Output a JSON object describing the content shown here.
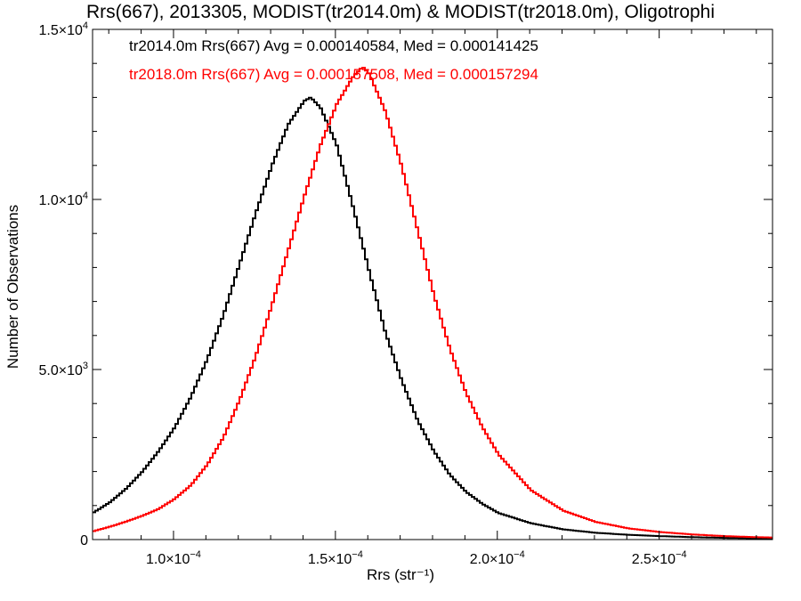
{
  "chart_data": {
    "type": "line",
    "title": "Rrs(667), 2013305, MODIST(tr2014.0m) & MODIST(tr2018.0m), Oligotrophi",
    "xlabel": "Rrs (str⁻¹)",
    "ylabel": "Number of Observations",
    "xlim": [
      7.5e-05,
      0.000285
    ],
    "ylim": [
      0,
      15000
    ],
    "x_ticks": [
      {
        "value": 0.0001,
        "mant": "1.0×10",
        "exp": "−4"
      },
      {
        "value": 0.00015,
        "mant": "1.5×10",
        "exp": "−4"
      },
      {
        "value": 0.0002,
        "mant": "2.0×10",
        "exp": "−4"
      },
      {
        "value": 0.00025,
        "mant": "2.5×10",
        "exp": "−4"
      }
    ],
    "y_ticks": [
      {
        "value": 0,
        "mant": "0",
        "exp": ""
      },
      {
        "value": 5000,
        "mant": "5.0×10",
        "exp": "3"
      },
      {
        "value": 10000,
        "mant": "1.0×10",
        "exp": "4"
      },
      {
        "value": 15000,
        "mant": "1.5×10",
        "exp": "4"
      }
    ],
    "legend": [
      {
        "text": "tr2014.0m Rrs(667) Avg = 0.000140584, Med = 0.000141425",
        "color": "#000000"
      },
      {
        "text": "tr2018.0m Rrs(667) Avg = 0.000157508, Med = 0.000157294",
        "color": "#ff0000"
      }
    ],
    "series": [
      {
        "color": "#000000",
        "x": [
          7.5e-05,
          8e-05,
          8.5e-05,
          9e-05,
          9.5e-05,
          0.0001,
          0.000105,
          0.00011,
          0.000115,
          0.00012,
          0.000125,
          0.00013,
          0.000135,
          0.00014,
          0.000142,
          0.000145,
          0.00015,
          0.000155,
          0.00016,
          0.000165,
          0.00017,
          0.000175,
          0.00018,
          0.000185,
          0.00019,
          0.000195,
          0.0002,
          0.00021,
          0.00022,
          0.00023,
          0.00024,
          0.00025,
          0.00026,
          0.00027,
          0.00028,
          0.000285
        ],
        "values": [
          800,
          1100,
          1500,
          2000,
          2600,
          3300,
          4200,
          5300,
          6600,
          8100,
          9600,
          11000,
          12200,
          12900,
          13000,
          12700,
          11600,
          9800,
          7900,
          6100,
          4700,
          3500,
          2600,
          1900,
          1400,
          1050,
          780,
          480,
          300,
          200,
          140,
          100,
          70,
          50,
          35,
          30
        ]
      },
      {
        "color": "#ff0000",
        "x": [
          7.5e-05,
          8e-05,
          8.5e-05,
          9e-05,
          9.5e-05,
          0.0001,
          0.000105,
          0.00011,
          0.000115,
          0.00012,
          0.000125,
          0.00013,
          0.000135,
          0.00014,
          0.000145,
          0.00015,
          0.000155,
          0.000158,
          0.00016,
          0.000165,
          0.00017,
          0.000175,
          0.00018,
          0.000185,
          0.00019,
          0.000195,
          0.0002,
          0.00021,
          0.00022,
          0.00023,
          0.00024,
          0.00025,
          0.00026,
          0.00027,
          0.00028,
          0.000285
        ],
        "values": [
          250,
          380,
          530,
          700,
          900,
          1200,
          1600,
          2200,
          3000,
          4100,
          5400,
          6900,
          8500,
          10100,
          11600,
          12800,
          13600,
          13900,
          13700,
          12600,
          11000,
          9100,
          7200,
          5600,
          4300,
          3300,
          2500,
          1450,
          850,
          520,
          330,
          220,
          150,
          100,
          70,
          60
        ]
      }
    ]
  }
}
